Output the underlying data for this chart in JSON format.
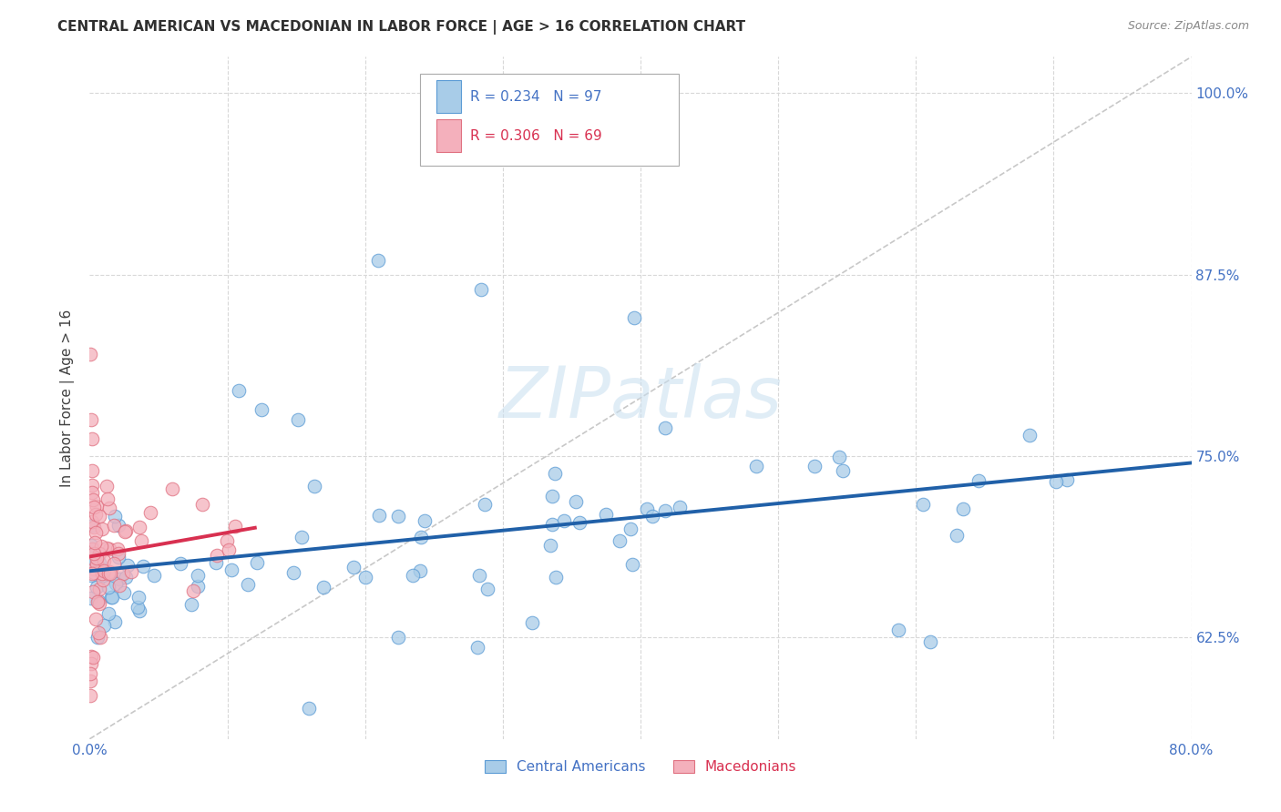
{
  "title": "CENTRAL AMERICAN VS MACEDONIAN IN LABOR FORCE | AGE > 16 CORRELATION CHART",
  "source": "Source: ZipAtlas.com",
  "ylabel": "In Labor Force | Age > 16",
  "watermark": "ZIPatlas",
  "x_min": 0.0,
  "x_max": 0.8,
  "y_min": 0.555,
  "y_max": 1.025,
  "x_ticks": [
    0.0,
    0.1,
    0.2,
    0.3,
    0.4,
    0.5,
    0.6,
    0.7,
    0.8
  ],
  "x_tick_labels": [
    "0.0%",
    "",
    "",
    "",
    "",
    "",
    "",
    "",
    "80.0%"
  ],
  "y_ticks": [
    0.625,
    0.75,
    0.875,
    1.0
  ],
  "y_tick_labels": [
    "62.5%",
    "75.0%",
    "87.5%",
    "100.0%"
  ],
  "legend1_r": "0.234",
  "legend1_n": "97",
  "legend2_r": "0.306",
  "legend2_n": "69",
  "blue_scatter": "#a8cce8",
  "blue_edge": "#5b9bd5",
  "pink_scatter": "#f4b0bc",
  "pink_edge": "#e07080",
  "trendline_blue": "#2060a8",
  "trendline_pink": "#d83050",
  "diagonal_color": "#c8c8c8",
  "grid_color": "#d8d8d8",
  "axis_tick_color": "#4472c4",
  "title_color": "#303030",
  "ylabel_color": "#404040",
  "source_color": "#888888"
}
